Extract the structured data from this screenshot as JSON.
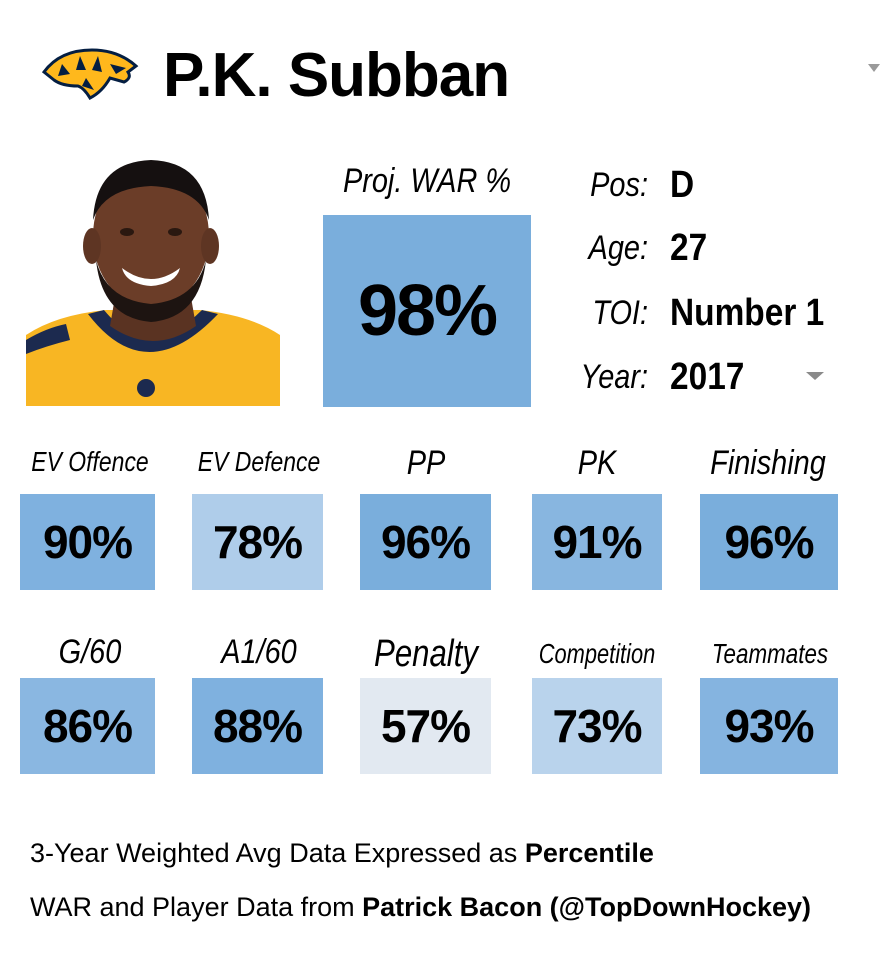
{
  "header": {
    "team_logo": "predators-logo",
    "player_name": "P.K. Subban",
    "menu_icon": "caret-down-icon"
  },
  "player_photo": "player-headshot",
  "war": {
    "label": "Proj. WAR %",
    "value": "98%",
    "percent": 98,
    "color": "#7aaedc"
  },
  "info": [
    {
      "label": "Pos:",
      "value": "D"
    },
    {
      "label": "Age:",
      "value": "27"
    },
    {
      "label": "TOI:",
      "value": "Number 1"
    },
    {
      "label": "Year:",
      "value": "2017"
    }
  ],
  "year_dropdown_icon": "caret-down-icon",
  "stats_row1": [
    {
      "label": "EV Offence",
      "value": "90%",
      "color": "#7fb1df"
    },
    {
      "label": "EV Defence",
      "value": "78%",
      "color": "#afcdea"
    },
    {
      "label": "PP",
      "value": "96%",
      "color": "#7aaedc"
    },
    {
      "label": "PK",
      "value": "91%",
      "color": "#88b6e0"
    },
    {
      "label": "Finishing",
      "value": "96%",
      "color": "#7aaedc"
    }
  ],
  "stats_row2": [
    {
      "label": "G/60",
      "value": "86%",
      "color": "#8ab7e1"
    },
    {
      "label": "A1/60",
      "value": "88%",
      "color": "#7fb1df"
    },
    {
      "label": "Penalty",
      "value": "57%",
      "color": "#e2e9f1"
    },
    {
      "label": "Competition",
      "value": "73%",
      "color": "#b9d3ec"
    },
    {
      "label": "Teammates",
      "value": "93%",
      "color": "#85b4e0"
    }
  ],
  "footer": {
    "line1_text": "3-Year Weighted Avg Data Expressed as ",
    "line1_bold": "Percentile",
    "line2_text": "WAR and Player Data from ",
    "line2_bold": "Patrick Bacon (@TopDownHockey)"
  }
}
